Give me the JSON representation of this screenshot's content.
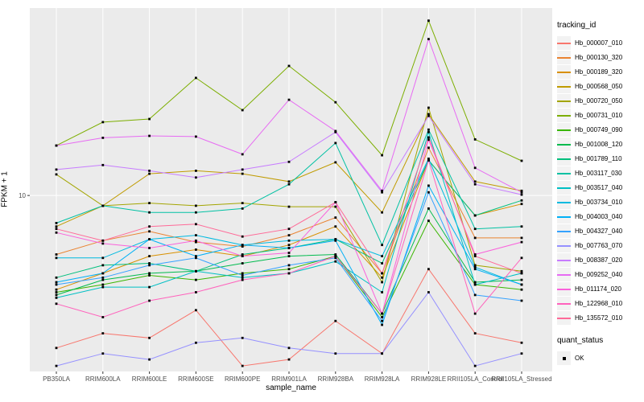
{
  "axes": {
    "x_title": "sample_name",
    "y_title": "FPKM + 1",
    "y_tick_label": "10"
  },
  "legend": {
    "tracking_title": "tracking_id",
    "quant_title": "quant_status",
    "quant_ok_label": "OK"
  },
  "colors": {
    "panel_bg": "#EBEBEB",
    "grid": "#FFFFFF",
    "tick": "#333333",
    "tick_label": "#4D4D4D",
    "legend_key_bg": "#F2F2F2",
    "marker": "#000000"
  },
  "chart_data": {
    "type": "line",
    "title": "",
    "xlabel": "sample_name",
    "ylabel": "FPKM + 1",
    "y_scale": "log10",
    "y_breaks": [
      10
    ],
    "ylim": [
      1.12,
      103
    ],
    "grid": "white-on-gray",
    "legend_position": "right",
    "point_shape": "filled-square",
    "quant_status": "OK",
    "categories": [
      "PB350LA",
      "RRIM600LA",
      "RRIM600LE",
      "RRIM600SE",
      "RRIM600PE",
      "RRIM901LA",
      "RRIM928BA",
      "RRIM928LA",
      "RRIM928LE",
      "RRII105LA_Control",
      "RRII105LA_Stressed"
    ],
    "series": [
      {
        "name": "Hb_000007_010",
        "color": "#F8766D",
        "values": [
          1.5,
          1.8,
          1.7,
          2.4,
          1.2,
          1.3,
          2.1,
          1.4,
          4.0,
          1.8,
          1.6
        ]
      },
      {
        "name": "Hb_000130_320",
        "color": "#EA8331",
        "values": [
          4.8,
          5.7,
          6.4,
          5.6,
          5.3,
          6.1,
          7.6,
          3.8,
          18.1,
          5.9,
          5.9
        ]
      },
      {
        "name": "Hb_000189_320",
        "color": "#D89000",
        "values": [
          3.1,
          3.8,
          4.7,
          5.1,
          4.7,
          5.4,
          6.8,
          3.6,
          15.5,
          7.8,
          9.0
        ]
      },
      {
        "name": "Hb_000568_050",
        "color": "#C09B00",
        "values": [
          6.8,
          8.8,
          13.1,
          13.6,
          13.1,
          11.9,
          15.1,
          8.1,
          27.5,
          11.9,
          10.6
        ]
      },
      {
        "name": "Hb_000720_050",
        "color": "#A3A500",
        "values": [
          13.0,
          8.8,
          9.1,
          8.8,
          9.1,
          8.7,
          8.7,
          3.4,
          29.8,
          4.2,
          3.9
        ]
      },
      {
        "name": "Hb_000731_010",
        "color": "#7CAE00",
        "values": [
          18.6,
          24.9,
          25.9,
          43.2,
          28.9,
          50.1,
          31.9,
          16.5,
          88.0,
          20.1,
          15.4
        ]
      },
      {
        "name": "Hb_000749_090",
        "color": "#39B600",
        "values": [
          3.0,
          3.3,
          3.7,
          3.5,
          3.8,
          4.0,
          4.7,
          2.2,
          7.3,
          3.3,
          3.1
        ]
      },
      {
        "name": "Hb_001008_120",
        "color": "#00BB4E",
        "values": [
          2.9,
          3.5,
          3.8,
          3.9,
          4.3,
          4.7,
          4.8,
          2.3,
          8.5,
          3.4,
          3.5
        ]
      },
      {
        "name": "Hb_001789_110",
        "color": "#00BF7D",
        "values": [
          3.6,
          4.2,
          4.3,
          3.9,
          4.8,
          5.2,
          5.8,
          4.3,
          15.5,
          7.8,
          9.4
        ]
      },
      {
        "name": "Hb_003117_030",
        "color": "#00C1A3",
        "values": [
          7.1,
          8.8,
          8.1,
          8.1,
          8.5,
          11.5,
          19.2,
          5.4,
          22.7,
          6.6,
          6.8
        ]
      },
      {
        "name": "Hb_003517_040",
        "color": "#00BFC4",
        "values": [
          2.8,
          3.2,
          3.2,
          3.9,
          3.6,
          3.8,
          4.4,
          3.0,
          22.0,
          3.3,
          3.8
        ]
      },
      {
        "name": "Hb_003734_010",
        "color": "#00BAE0",
        "values": [
          4.6,
          4.6,
          5.8,
          6.1,
          5.4,
          5.7,
          5.8,
          4.7,
          15.8,
          4.1,
          3.3
        ]
      },
      {
        "name": "Hb_004003_040",
        "color": "#00B0F6",
        "values": [
          3.4,
          3.8,
          5.8,
          4.7,
          5.4,
          5.2,
          5.7,
          2.0,
          11.3,
          4.0,
          3.3
        ]
      },
      {
        "name": "Hb_004327_040",
        "color": "#35A2FF",
        "values": [
          3.3,
          3.6,
          4.2,
          4.6,
          3.7,
          4.2,
          4.6,
          2.1,
          10.4,
          2.9,
          2.7
        ]
      },
      {
        "name": "Hb_007763_070",
        "color": "#9590FF",
        "values": [
          1.2,
          1.4,
          1.3,
          1.6,
          1.7,
          1.5,
          1.4,
          1.4,
          3.0,
          1.2,
          1.4
        ]
      },
      {
        "name": "Hb_008387_020",
        "color": "#C77CFF",
        "values": [
          13.8,
          14.6,
          13.6,
          12.5,
          13.8,
          15.2,
          22.0,
          10.4,
          26.9,
          11.5,
          10.1
        ]
      },
      {
        "name": "Hb_009252_040",
        "color": "#E76BF3",
        "values": [
          18.6,
          20.5,
          21.0,
          20.8,
          16.7,
          32.9,
          22.3,
          10.6,
          70.0,
          14.1,
          10.4
        ]
      },
      {
        "name": "Hb_011174_020",
        "color": "#FA62DB",
        "values": [
          6.3,
          5.5,
          5.2,
          5.7,
          4.7,
          4.9,
          9.2,
          2.3,
          20.0,
          4.8,
          5.6
        ]
      },
      {
        "name": "Hb_122968_010",
        "color": "#FF62BC",
        "values": [
          2.6,
          2.2,
          2.7,
          3.0,
          3.5,
          3.8,
          4.7,
          2.3,
          15.5,
          2.3,
          4.6
        ]
      },
      {
        "name": "Hb_135572_010",
        "color": "#FF6A98",
        "values": [
          6.6,
          5.7,
          6.8,
          7.0,
          6.0,
          6.6,
          9.2,
          3.8,
          20.6,
          4.7,
          3.8
        ]
      }
    ]
  }
}
